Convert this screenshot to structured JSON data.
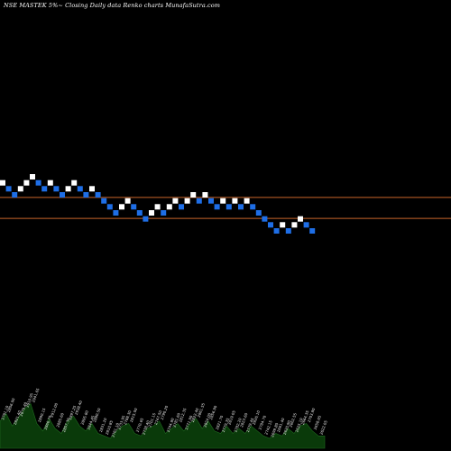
{
  "chart_data": {
    "type": "renko",
    "title": "NSE MASTEK 5%~ Closing Daily data Renko charts MunafaSutra.com",
    "colors": {
      "background": "#000000",
      "up_brick": "#ffffff",
      "down_brick": "#1e6ee6",
      "reference_line": "#c8642a",
      "volume_area": "#0a3a0a",
      "volume_label": "#e6e6e6"
    },
    "reference_lines": [
      2840,
      2700
    ],
    "bricks": [
      {
        "level": 2940,
        "dir": "up"
      },
      {
        "level": 2900,
        "dir": "down"
      },
      {
        "level": 2860,
        "dir": "down"
      },
      {
        "level": 2900,
        "dir": "up"
      },
      {
        "level": 2940,
        "dir": "up"
      },
      {
        "level": 2980,
        "dir": "up"
      },
      {
        "level": 2940,
        "dir": "down"
      },
      {
        "level": 2900,
        "dir": "down"
      },
      {
        "level": 2940,
        "dir": "up"
      },
      {
        "level": 2900,
        "dir": "down"
      },
      {
        "level": 2860,
        "dir": "down"
      },
      {
        "level": 2900,
        "dir": "up"
      },
      {
        "level": 2940,
        "dir": "up"
      },
      {
        "level": 2900,
        "dir": "down"
      },
      {
        "level": 2860,
        "dir": "down"
      },
      {
        "level": 2900,
        "dir": "up"
      },
      {
        "level": 2860,
        "dir": "down"
      },
      {
        "level": 2820,
        "dir": "down"
      },
      {
        "level": 2780,
        "dir": "down"
      },
      {
        "level": 2740,
        "dir": "down"
      },
      {
        "level": 2780,
        "dir": "up"
      },
      {
        "level": 2820,
        "dir": "up"
      },
      {
        "level": 2780,
        "dir": "down"
      },
      {
        "level": 2740,
        "dir": "down"
      },
      {
        "level": 2700,
        "dir": "down"
      },
      {
        "level": 2740,
        "dir": "up"
      },
      {
        "level": 2780,
        "dir": "up"
      },
      {
        "level": 2740,
        "dir": "down"
      },
      {
        "level": 2780,
        "dir": "up"
      },
      {
        "level": 2820,
        "dir": "up"
      },
      {
        "level": 2780,
        "dir": "down"
      },
      {
        "level": 2820,
        "dir": "up"
      },
      {
        "level": 2860,
        "dir": "up"
      },
      {
        "level": 2820,
        "dir": "down"
      },
      {
        "level": 2860,
        "dir": "up"
      },
      {
        "level": 2820,
        "dir": "down"
      },
      {
        "level": 2780,
        "dir": "down"
      },
      {
        "level": 2820,
        "dir": "up"
      },
      {
        "level": 2780,
        "dir": "down"
      },
      {
        "level": 2820,
        "dir": "up"
      },
      {
        "level": 2780,
        "dir": "down"
      },
      {
        "level": 2820,
        "dir": "up"
      },
      {
        "level": 2780,
        "dir": "down"
      },
      {
        "level": 2740,
        "dir": "down"
      },
      {
        "level": 2700,
        "dir": "down"
      },
      {
        "level": 2660,
        "dir": "down"
      },
      {
        "level": 2620,
        "dir": "down"
      },
      {
        "level": 2660,
        "dir": "up"
      },
      {
        "level": 2620,
        "dir": "down"
      },
      {
        "level": 2660,
        "dir": "up"
      },
      {
        "level": 2700,
        "dir": "up"
      },
      {
        "level": 2660,
        "dir": "down"
      },
      {
        "level": 2620,
        "dir": "down"
      }
    ],
    "volume": [
      {
        "v": 0.55,
        "label": "2791.10"
      },
      {
        "v": 0.7,
        "label": "2856.00"
      },
      {
        "v": 0.45,
        "label": "2821.40"
      },
      {
        "v": 0.62,
        "label": "2879.40"
      },
      {
        "v": 0.8,
        "label": "2910.95"
      },
      {
        "v": 0.9,
        "label": "2941.65"
      },
      {
        "v": 0.5,
        "label": "2890.15"
      },
      {
        "v": 0.35,
        "label": "2866.70"
      },
      {
        "v": 0.6,
        "label": "2912.00"
      },
      {
        "v": 0.4,
        "label": "2885.60"
      },
      {
        "v": 0.3,
        "label": "2857.30"
      },
      {
        "v": 0.55,
        "label": "2897.25"
      },
      {
        "v": 0.65,
        "label": "2938.40"
      },
      {
        "v": 0.45,
        "label": "2895.80"
      },
      {
        "v": 0.35,
        "label": "2844.45"
      },
      {
        "v": 0.5,
        "label": "2880.50"
      },
      {
        "v": 0.3,
        "label": "2831.20"
      },
      {
        "v": 0.25,
        "label": "2810.85"
      },
      {
        "v": 0.2,
        "label": "2761.10"
      },
      {
        "v": 0.35,
        "label": "2733.95"
      },
      {
        "v": 0.45,
        "label": "2788.30"
      },
      {
        "v": 0.5,
        "label": "2815.00"
      },
      {
        "v": 0.3,
        "label": "2770.65"
      },
      {
        "v": 0.25,
        "label": "2738.40"
      },
      {
        "v": 0.4,
        "label": "2701.15"
      },
      {
        "v": 0.45,
        "label": "2747.50"
      },
      {
        "v": 0.55,
        "label": "2790.20"
      },
      {
        "v": 0.3,
        "label": "2744.80"
      },
      {
        "v": 0.4,
        "label": "2781.60"
      },
      {
        "v": 0.5,
        "label": "2812.35"
      },
      {
        "v": 0.35,
        "label": "2771.90"
      },
      {
        "v": 0.5,
        "label": "2822.40"
      },
      {
        "v": 0.6,
        "label": "2861.55"
      },
      {
        "v": 0.4,
        "label": "2824.00"
      },
      {
        "v": 0.55,
        "label": "2856.90"
      },
      {
        "v": 0.35,
        "label": "2821.70"
      },
      {
        "v": 0.3,
        "label": "2779.35"
      },
      {
        "v": 0.45,
        "label": "2819.05"
      },
      {
        "v": 0.3,
        "label": "2782.20"
      },
      {
        "v": 0.4,
        "label": "2823.60"
      },
      {
        "v": 0.3,
        "label": "2779.45"
      },
      {
        "v": 0.45,
        "label": "2826.10"
      },
      {
        "v": 0.35,
        "label": "2784.70"
      },
      {
        "v": 0.25,
        "label": "2742.15"
      },
      {
        "v": 0.2,
        "label": "2699.80"
      },
      {
        "v": 0.3,
        "label": "2661.40"
      },
      {
        "v": 0.25,
        "label": "2620.90"
      },
      {
        "v": 0.4,
        "label": "2662.55"
      },
      {
        "v": 0.3,
        "label": "2625.10"
      },
      {
        "v": 0.45,
        "label": "2664.35"
      },
      {
        "v": 0.5,
        "label": "2703.80"
      },
      {
        "v": 0.35,
        "label": "2658.65"
      },
      {
        "v": 0.25,
        "label": "2622.05"
      }
    ]
  }
}
